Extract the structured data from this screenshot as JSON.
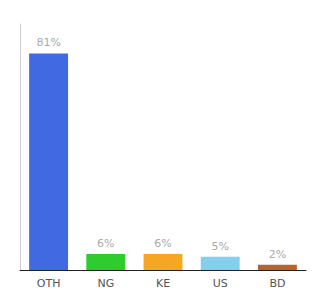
{
  "chart_data": {
    "type": "bar",
    "categories": [
      "OTH",
      "NG",
      "KE",
      "US",
      "BD"
    ],
    "values": [
      81,
      6,
      6,
      5,
      2
    ],
    "value_labels": [
      "81%",
      "6%",
      "6%",
      "5%",
      "2%"
    ],
    "colors": [
      "#4169e1",
      "#2ecc2e",
      "#f5a623",
      "#87ceeb",
      "#b8632a"
    ],
    "ylim": [
      0,
      92
    ],
    "data_labels": true,
    "tick_labels": "x",
    "grid": false
  }
}
